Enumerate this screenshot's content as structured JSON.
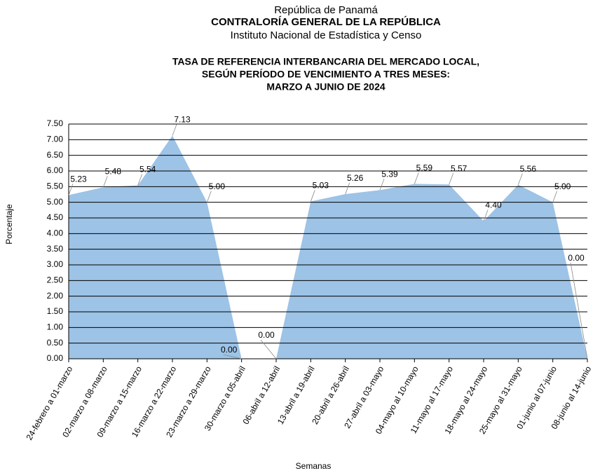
{
  "chart_data": {
    "type": "area",
    "header": [
      "República de Panamá",
      "CONTRALORÍA GENERAL DE LA REPÚBLICA",
      "Instituto Nacional de Estadística y Censo"
    ],
    "title": [
      "TASA DE REFERENCIA INTERBANCARIA DEL MERCADO LOCAL,",
      "SEGÚN PERÍODO DE VENCIMIENTO A TRES MESES:",
      "MARZO  A JUNIO DE 2024"
    ],
    "x_label": "Semanas",
    "y_label": "Porcentaje",
    "categories": [
      "24-febrero a 01-marzo",
      "02-marzo a 08-marzo",
      "09-marzo a 15-marzo",
      "16-marzo a 22-marzo",
      "23-marzo a 29-marzo",
      "30-marzo a 05-abril",
      "06-abril a 12-abril",
      "13-abril a 19-abril",
      "20-abril a 26-abril",
      "27-abril a 03-mayo",
      "04-mayo al 10-mayo",
      "11-mayo al 17-mayo",
      "18-mayo al 24-mayo",
      "25-mayo al 31-mayo",
      "01-junio al 07-junio",
      "08-junio al 14-junio"
    ],
    "values": [
      5.23,
      5.48,
      5.54,
      7.13,
      5.0,
      0.0,
      0.0,
      5.03,
      5.26,
      5.39,
      5.59,
      5.57,
      4.4,
      5.56,
      5.0,
      0.0
    ],
    "value_labels": [
      "5.23",
      "5.48",
      "5.54",
      "7.13",
      "5.00",
      "0.00",
      "0.00",
      "5.03",
      "5.26",
      "5.39",
      "5.59",
      "5.57",
      "4.40",
      "5.56",
      "5.00",
      "0.00"
    ],
    "color": "#9dc3e6",
    "ylim": [
      0,
      7.5
    ],
    "yticks": [
      {
        "value": 0,
        "label": "0.00"
      },
      {
        "value": 0.5,
        "label": "0.50"
      },
      {
        "value": 1,
        "label": "1.00"
      },
      {
        "value": 1.5,
        "label": "1.50"
      },
      {
        "value": 2,
        "label": "2.00"
      },
      {
        "value": 2.5,
        "label": "2.50"
      },
      {
        "value": 3,
        "label": "3.00"
      },
      {
        "value": 3.5,
        "label": "3.50"
      },
      {
        "value": 4,
        "label": "4.00"
      },
      {
        "value": 4.5,
        "label": "4.50"
      },
      {
        "value": 5,
        "label": "5.00"
      },
      {
        "value": 5.5,
        "label": "5.50"
      },
      {
        "value": 6,
        "label": "6.00"
      },
      {
        "value": 6.5,
        "label": "6.50"
      },
      {
        "value": 7,
        "label": "7.00"
      },
      {
        "value": 7.5,
        "label": "7.50"
      }
    ],
    "grid": true
  }
}
